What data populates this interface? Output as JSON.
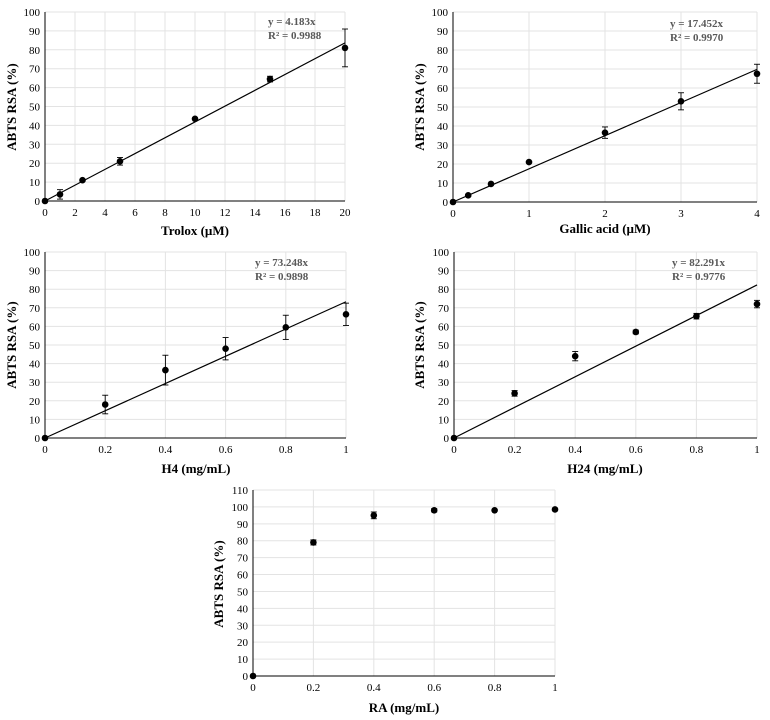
{
  "chart_data": [
    {
      "type": "scatter",
      "xlabel": "Trolox (µM)",
      "ylabel": "ABTS RSA (%)",
      "xlim": [
        0,
        20
      ],
      "ylim": [
        0,
        100
      ],
      "xticks": [
        0,
        2,
        4,
        6,
        8,
        10,
        12,
        14,
        16,
        18,
        20
      ],
      "xtick_labels": [
        "0",
        "2",
        "4",
        "6",
        "8",
        "10",
        "12",
        "14",
        "16",
        "18",
        "20"
      ],
      "yticks": [
        0,
        10,
        20,
        30,
        40,
        50,
        60,
        70,
        80,
        90,
        100
      ],
      "ytick_labels": [
        "0",
        "10",
        "20",
        "30",
        "40",
        "50",
        "60",
        "70",
        "80",
        "90",
        "100"
      ],
      "x": [
        0,
        1,
        2.5,
        5,
        10,
        15,
        20
      ],
      "y": [
        0,
        3.5,
        11,
        21,
        43.5,
        64.5,
        81
      ],
      "err": [
        0,
        2.5,
        0.5,
        2,
        0.5,
        1.5,
        10
      ],
      "trend_slope": 4.183,
      "equation": "y = 4.183x",
      "r2": "R² = 0.9988"
    },
    {
      "type": "scatter",
      "xlabel": "Gallic acid (µM)",
      "ylabel": "ABTS RSA (%)",
      "xlim": [
        0,
        4
      ],
      "ylim": [
        0,
        100
      ],
      "xticks": [
        0,
        1,
        2,
        3,
        4
      ],
      "xtick_labels": [
        "0",
        "1",
        "2",
        "3",
        "4"
      ],
      "yticks": [
        0,
        10,
        20,
        30,
        40,
        50,
        60,
        70,
        80,
        90,
        100
      ],
      "ytick_labels": [
        "0",
        "10",
        "20",
        "30",
        "40",
        "50",
        "60",
        "70",
        "80",
        "90",
        "100"
      ],
      "x": [
        0,
        0.2,
        0.5,
        1,
        2,
        3,
        4
      ],
      "y": [
        0,
        3.5,
        9.5,
        21,
        36.5,
        53,
        67.5
      ],
      "err": [
        0,
        0.5,
        0.5,
        0.5,
        3,
        4.5,
        5
      ],
      "trend_slope": 17.452,
      "equation": "y = 17.452x",
      "r2": "R² = 0.9970"
    },
    {
      "type": "scatter",
      "xlabel": "H4 (mg/mL)",
      "ylabel": "ABTS RSA (%)",
      "xlim": [
        0,
        1
      ],
      "ylim": [
        0,
        100
      ],
      "xticks": [
        0,
        0.2,
        0.4,
        0.6,
        0.8,
        1
      ],
      "xtick_labels": [
        "0",
        "0.2",
        "0.4",
        "0.6",
        "0.8",
        "1"
      ],
      "yticks": [
        0,
        10,
        20,
        30,
        40,
        50,
        60,
        70,
        80,
        90,
        100
      ],
      "ytick_labels": [
        "0",
        "10",
        "20",
        "30",
        "40",
        "50",
        "60",
        "70",
        "80",
        "90",
        "100"
      ],
      "x": [
        0,
        0.2,
        0.4,
        0.6,
        0.8,
        1
      ],
      "y": [
        0,
        18,
        36.5,
        48,
        59.5,
        66.5
      ],
      "err": [
        0,
        5,
        8,
        6,
        6.5,
        6
      ],
      "trend_slope": 73.248,
      "equation": "y = 73.248x",
      "r2": "R² = 0.9898"
    },
    {
      "type": "scatter",
      "xlabel": "H24 (mg/mL)",
      "ylabel": "ABTS RSA (%)",
      "xlim": [
        0,
        1
      ],
      "ylim": [
        0,
        100
      ],
      "xticks": [
        0,
        0.2,
        0.4,
        0.6,
        0.8,
        1
      ],
      "xtick_labels": [
        "0",
        "0.2",
        "0.4",
        "0.6",
        "0.8",
        "1"
      ],
      "yticks": [
        0,
        10,
        20,
        30,
        40,
        50,
        60,
        70,
        80,
        90,
        100
      ],
      "ytick_labels": [
        "0",
        "10",
        "20",
        "30",
        "40",
        "50",
        "60",
        "70",
        "80",
        "90",
        "100"
      ],
      "x": [
        0,
        0.2,
        0.4,
        0.6,
        0.8,
        1
      ],
      "y": [
        0,
        24,
        44,
        57,
        65.5,
        72
      ],
      "err": [
        0,
        1.5,
        2.5,
        1,
        1.5,
        2
      ],
      "trend_slope": 82.291,
      "equation": "y = 82.291x",
      "r2": "R² = 0.9776"
    },
    {
      "type": "scatter",
      "xlabel": "RA (mg/mL)",
      "ylabel": "ABTS RSA (%)",
      "xlim": [
        0,
        1
      ],
      "ylim": [
        0,
        110
      ],
      "xticks": [
        0,
        0.2,
        0.4,
        0.6,
        0.8,
        1
      ],
      "xtick_labels": [
        "0",
        "0.2",
        "0.4",
        "0.6",
        "0.8",
        "1"
      ],
      "yticks": [
        0,
        10,
        20,
        30,
        40,
        50,
        60,
        70,
        80,
        90,
        100,
        110
      ],
      "ytick_labels": [
        "0",
        "10",
        "20",
        "30",
        "40",
        "50",
        "60",
        "70",
        "80",
        "90",
        "100",
        "110"
      ],
      "x": [
        0,
        0.2,
        0.4,
        0.6,
        0.8,
        1
      ],
      "y": [
        0,
        79,
        95,
        98,
        98,
        98.5
      ],
      "err": [
        0,
        1.5,
        2,
        1,
        0.5,
        0.5
      ],
      "trend_slope": null,
      "equation": "",
      "r2": ""
    }
  ]
}
